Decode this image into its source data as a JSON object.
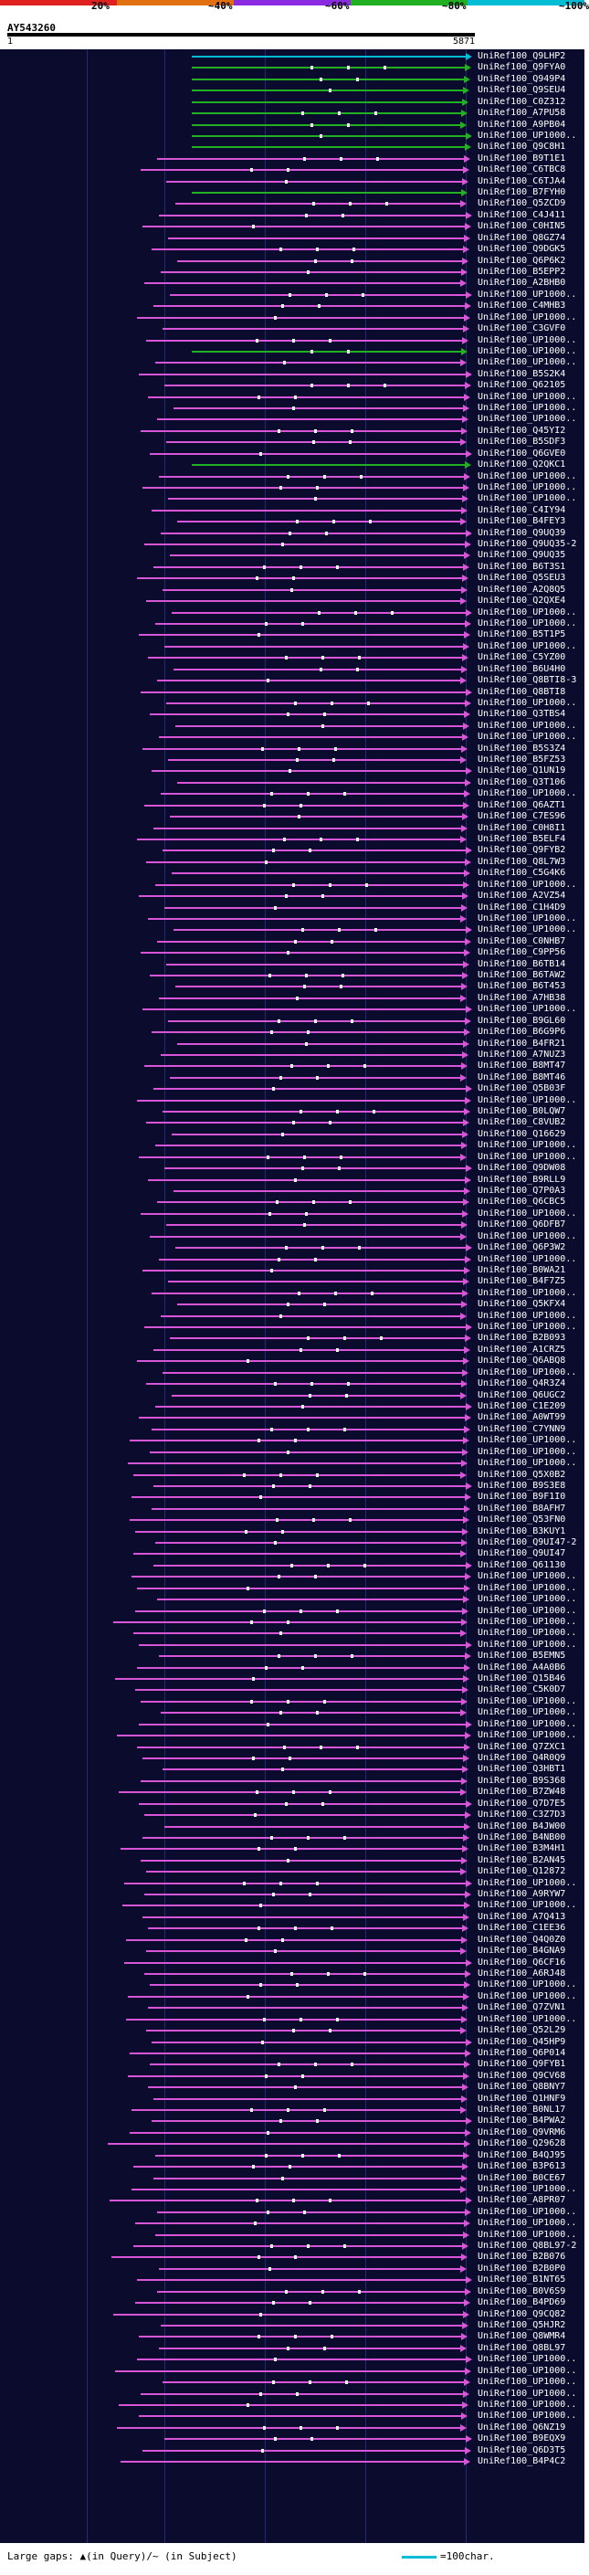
{
  "scale": {
    "labels": [
      "20%",
      "~40%",
      "~60%",
      "~80%",
      "~100%"
    ],
    "colors": [
      "#e02020",
      "#e07010",
      "#8a2be2",
      "#22b022",
      "#00bcd4"
    ]
  },
  "query": {
    "id": "AY543260",
    "start": "1",
    "end": "5871"
  },
  "colors": {
    "panel": "#0b0b2e",
    "pink": "#d855d8",
    "green": "#22b022",
    "cyan": "#00bcd4"
  },
  "hits": [
    {
      "label": "UniRef100_Q9LHP2",
      "color": "cyan"
    },
    {
      "label": "UniRef100_Q9FYA0",
      "color": "green"
    },
    {
      "label": "UniRef100_Q949P4",
      "color": "green"
    },
    {
      "label": "UniRef100_Q9SEU4",
      "color": "green"
    },
    {
      "label": "UniRef100_C0Z312",
      "color": "green"
    },
    {
      "label": "UniRef100_A7PU58",
      "color": "green"
    },
    {
      "label": "UniRef100_A9PB04",
      "color": "green"
    },
    {
      "label": "UniRef100_UP1000..",
      "color": "green"
    },
    {
      "label": "UniRef100_Q9C8H1",
      "color": "green"
    },
    {
      "label": "UniRef100_B9T1E1",
      "color": "pink"
    },
    {
      "label": "UniRef100_C6TBC8",
      "color": "pink"
    },
    {
      "label": "UniRef100_C6TJA4",
      "color": "pink"
    },
    {
      "label": "UniRef100_B7FYH0",
      "color": "green"
    },
    {
      "label": "UniRef100_Q5ZCD9",
      "color": "pink"
    },
    {
      "label": "UniRef100_C4J411",
      "color": "pink"
    },
    {
      "label": "UniRef100_C0HIN5",
      "color": "pink"
    },
    {
      "label": "UniRef100_Q8GZ74",
      "color": "pink"
    },
    {
      "label": "UniRef100_Q9DGK5",
      "color": "pink"
    },
    {
      "label": "UniRef100_Q6P6K2",
      "color": "pink"
    },
    {
      "label": "UniRef100_B5EPP2",
      "color": "pink"
    },
    {
      "label": "UniRef100_A2BHB0",
      "color": "pink"
    },
    {
      "label": "UniRef100_UP1000..",
      "color": "pink"
    },
    {
      "label": "UniRef100_C4MHB3",
      "color": "pink"
    },
    {
      "label": "UniRef100_UP1000..",
      "color": "pink"
    },
    {
      "label": "UniRef100_C3GVF0",
      "color": "pink"
    },
    {
      "label": "UniRef100_UP1000..",
      "color": "pink"
    },
    {
      "label": "UniRef100_UP1000..",
      "color": "green"
    },
    {
      "label": "UniRef100_UP1000..",
      "color": "pink"
    },
    {
      "label": "UniRef100_B5S2K4",
      "color": "pink"
    },
    {
      "label": "UniRef100_Q62105",
      "color": "pink"
    },
    {
      "label": "UniRef100_UP1000..",
      "color": "pink"
    },
    {
      "label": "UniRef100_UP1000..",
      "color": "pink"
    },
    {
      "label": "UniRef100_UP1000..",
      "color": "pink"
    },
    {
      "label": "UniRef100_Q45YI2",
      "color": "pink"
    },
    {
      "label": "UniRef100_B5SDF3",
      "color": "pink"
    },
    {
      "label": "UniRef100_Q6GVE0",
      "color": "pink"
    },
    {
      "label": "UniRef100_Q2QKC1",
      "color": "green"
    },
    {
      "label": "UniRef100_UP1000..",
      "color": "pink"
    },
    {
      "label": "UniRef100_UP1000..",
      "color": "pink"
    },
    {
      "label": "UniRef100_UP1000..",
      "color": "pink"
    },
    {
      "label": "UniRef100_C4IY94",
      "color": "pink"
    },
    {
      "label": "UniRef100_B4FEY3",
      "color": "pink"
    },
    {
      "label": "UniRef100_Q9UQ39",
      "color": "pink"
    },
    {
      "label": "UniRef100_Q9UQ35-2",
      "color": "pink"
    },
    {
      "label": "UniRef100_Q9UQ35",
      "color": "pink"
    },
    {
      "label": "UniRef100_B6T3S1",
      "color": "pink"
    },
    {
      "label": "UniRef100_Q5SEU3",
      "color": "pink"
    },
    {
      "label": "UniRef100_A2Q8Q5",
      "color": "pink"
    },
    {
      "label": "UniRef100_Q2QXE4",
      "color": "pink"
    },
    {
      "label": "UniRef100_UP1000..",
      "color": "pink"
    },
    {
      "label": "UniRef100_UP1000..",
      "color": "pink"
    },
    {
      "label": "UniRef100_B5T1P5",
      "color": "pink"
    },
    {
      "label": "UniRef100_UP1000..",
      "color": "pink"
    },
    {
      "label": "UniRef100_C5YZ00",
      "color": "pink"
    },
    {
      "label": "UniRef100_B6U4H0",
      "color": "pink"
    },
    {
      "label": "UniRef100_Q8BTI8-3",
      "color": "pink"
    },
    {
      "label": "UniRef100_Q8BTI8",
      "color": "pink"
    },
    {
      "label": "UniRef100_UP1000..",
      "color": "pink"
    },
    {
      "label": "UniRef100_Q3TBS4",
      "color": "pink"
    },
    {
      "label": "UniRef100_UP1000..",
      "color": "pink"
    },
    {
      "label": "UniRef100_UP1000..",
      "color": "pink"
    },
    {
      "label": "UniRef100_B5S3Z4",
      "color": "pink"
    },
    {
      "label": "UniRef100_B5FZ53",
      "color": "pink"
    },
    {
      "label": "UniRef100_Q1UN19",
      "color": "pink"
    },
    {
      "label": "UniRef100_Q3T106",
      "color": "pink"
    },
    {
      "label": "UniRef100_UP1000..",
      "color": "pink"
    },
    {
      "label": "UniRef100_Q6AZT1",
      "color": "pink"
    },
    {
      "label": "UniRef100_C7ES96",
      "color": "pink"
    },
    {
      "label": "UniRef100_C0H8I1",
      "color": "pink"
    },
    {
      "label": "UniRef100_B5ELF4",
      "color": "pink"
    },
    {
      "label": "UniRef100_Q9FYB2",
      "color": "pink"
    },
    {
      "label": "UniRef100_Q8L7W3",
      "color": "pink"
    },
    {
      "label": "UniRef100_C5G4K6",
      "color": "pink"
    },
    {
      "label": "UniRef100_UP1000..",
      "color": "pink"
    },
    {
      "label": "UniRef100_A2VZ54",
      "color": "pink"
    },
    {
      "label": "UniRef100_C1H4D9",
      "color": "pink"
    },
    {
      "label": "UniRef100_UP1000..",
      "color": "pink"
    },
    {
      "label": "UniRef100_UP1000..",
      "color": "pink"
    },
    {
      "label": "UniRef100_C0NHB7",
      "color": "pink"
    },
    {
      "label": "UniRef100_C9PP56",
      "color": "pink"
    },
    {
      "label": "UniRef100_B6TB14",
      "color": "pink"
    },
    {
      "label": "UniRef100_B6TAW2",
      "color": "pink"
    },
    {
      "label": "UniRef100_B6T453",
      "color": "pink"
    },
    {
      "label": "UniRef100_A7HB38",
      "color": "pink"
    },
    {
      "label": "UniRef100_UP1000..",
      "color": "pink"
    },
    {
      "label": "UniRef100_B9GL60",
      "color": "pink"
    },
    {
      "label": "UniRef100_B6G9P6",
      "color": "pink"
    },
    {
      "label": "UniRef100_B4FR21",
      "color": "pink"
    },
    {
      "label": "UniRef100_A7NUZ3",
      "color": "pink"
    },
    {
      "label": "UniRef100_B8MT47",
      "color": "pink"
    },
    {
      "label": "UniRef100_B8MT46",
      "color": "pink"
    },
    {
      "label": "UniRef100_Q5B03F",
      "color": "pink"
    },
    {
      "label": "UniRef100_UP1000..",
      "color": "pink"
    },
    {
      "label": "UniRef100_B0LQW7",
      "color": "pink"
    },
    {
      "label": "UniRef100_C8VUB2",
      "color": "pink"
    },
    {
      "label": "UniRef100_Q16629",
      "color": "pink"
    },
    {
      "label": "UniRef100_UP1000..",
      "color": "pink"
    },
    {
      "label": "UniRef100_UP1000..",
      "color": "pink"
    },
    {
      "label": "UniRef100_Q9DW08",
      "color": "pink"
    },
    {
      "label": "UniRef100_B9RLL9",
      "color": "pink"
    },
    {
      "label": "UniRef100_Q7P0A3",
      "color": "pink"
    },
    {
      "label": "UniRef100_Q6CBC5",
      "color": "pink"
    },
    {
      "label": "UniRef100_UP1000..",
      "color": "pink"
    },
    {
      "label": "UniRef100_Q6DFB7",
      "color": "pink"
    },
    {
      "label": "UniRef100_UP1000..",
      "color": "pink"
    },
    {
      "label": "UniRef100_Q6P3W2",
      "color": "pink"
    },
    {
      "label": "UniRef100_UP1000..",
      "color": "pink"
    },
    {
      "label": "UniRef100_B0WA21",
      "color": "pink"
    },
    {
      "label": "UniRef100_B4F7Z5",
      "color": "pink"
    },
    {
      "label": "UniRef100_UP1000..",
      "color": "pink"
    },
    {
      "label": "UniRef100_Q5KFX4",
      "color": "pink"
    },
    {
      "label": "UniRef100_UP1000..",
      "color": "pink"
    },
    {
      "label": "UniRef100_UP1000..",
      "color": "pink"
    },
    {
      "label": "UniRef100_B2B093",
      "color": "pink"
    },
    {
      "label": "UniRef100_A1CRZ5",
      "color": "pink"
    },
    {
      "label": "UniRef100_Q6ABQ8",
      "color": "pink"
    },
    {
      "label": "UniRef100_UP1000..",
      "color": "pink"
    },
    {
      "label": "UniRef100_Q4R3Z4",
      "color": "pink"
    },
    {
      "label": "UniRef100_Q6UGC2",
      "color": "pink"
    },
    {
      "label": "UniRef100_C1E209",
      "color": "pink"
    },
    {
      "label": "UniRef100_A0WT99",
      "color": "pink"
    },
    {
      "label": "UniRef100_C7YNN9",
      "color": "pink"
    },
    {
      "label": "UniRef100_UP1000..",
      "color": "pink"
    },
    {
      "label": "UniRef100_UP1000..",
      "color": "pink"
    },
    {
      "label": "UniRef100_UP1000..",
      "color": "pink"
    },
    {
      "label": "UniRef100_Q5X0B2",
      "color": "pink"
    },
    {
      "label": "UniRef100_B9S3E8",
      "color": "pink"
    },
    {
      "label": "UniRef100_B9F1I0",
      "color": "pink"
    },
    {
      "label": "UniRef100_B8AFH7",
      "color": "pink"
    },
    {
      "label": "UniRef100_Q53FN0",
      "color": "pink"
    },
    {
      "label": "UniRef100_B3KUY1",
      "color": "pink"
    },
    {
      "label": "UniRef100_Q9UI47-2",
      "color": "pink"
    },
    {
      "label": "UniRef100_Q9UI47",
      "color": "pink"
    },
    {
      "label": "UniRef100_Q61130",
      "color": "pink"
    },
    {
      "label": "UniRef100_UP1000..",
      "color": "pink"
    },
    {
      "label": "UniRef100_UP1000..",
      "color": "pink"
    },
    {
      "label": "UniRef100_UP1000..",
      "color": "pink"
    },
    {
      "label": "UniRef100_UP1000..",
      "color": "pink"
    },
    {
      "label": "UniRef100_UP1000..",
      "color": "pink"
    },
    {
      "label": "UniRef100_UP1000..",
      "color": "pink"
    },
    {
      "label": "UniRef100_UP1000..",
      "color": "pink"
    },
    {
      "label": "UniRef100_B5EMN5",
      "color": "pink"
    },
    {
      "label": "UniRef100_A4A0B6",
      "color": "pink"
    },
    {
      "label": "UniRef100_Q15B46",
      "color": "pink"
    },
    {
      "label": "UniRef100_C5K0D7",
      "color": "pink"
    },
    {
      "label": "UniRef100_UP1000..",
      "color": "pink"
    },
    {
      "label": "UniRef100_UP1000..",
      "color": "pink"
    },
    {
      "label": "UniRef100_UP1000..",
      "color": "pink"
    },
    {
      "label": "UniRef100_UP1000..",
      "color": "pink"
    },
    {
      "label": "UniRef100_Q7ZXC1",
      "color": "pink"
    },
    {
      "label": "UniRef100_Q4R0Q9",
      "color": "pink"
    },
    {
      "label": "UniRef100_Q3HBT1",
      "color": "pink"
    },
    {
      "label": "UniRef100_B9S368",
      "color": "pink"
    },
    {
      "label": "UniRef100_B7ZW48",
      "color": "pink"
    },
    {
      "label": "UniRef100_Q7D7E5",
      "color": "pink"
    },
    {
      "label": "UniRef100_C3Z7D3",
      "color": "pink"
    },
    {
      "label": "UniRef100_B4JW00",
      "color": "pink"
    },
    {
      "label": "UniRef100_B4NB00",
      "color": "pink"
    },
    {
      "label": "UniRef100_B3M4H1",
      "color": "pink"
    },
    {
      "label": "UniRef100_B2AN45",
      "color": "pink"
    },
    {
      "label": "UniRef100_Q12872",
      "color": "pink"
    },
    {
      "label": "UniRef100_UP1000..",
      "color": "pink"
    },
    {
      "label": "UniRef100_A9RYW7",
      "color": "pink"
    },
    {
      "label": "UniRef100_UP1000..",
      "color": "pink"
    },
    {
      "label": "UniRef100_A7Q413",
      "color": "pink"
    },
    {
      "label": "UniRef100_C1EE36",
      "color": "pink"
    },
    {
      "label": "UniRef100_Q4Q0Z0",
      "color": "pink"
    },
    {
      "label": "UniRef100_B4GNA9",
      "color": "pink"
    },
    {
      "label": "UniRef100_Q6CF16",
      "color": "pink"
    },
    {
      "label": "UniRef100_A6RJ48",
      "color": "pink"
    },
    {
      "label": "UniRef100_UP1000..",
      "color": "pink"
    },
    {
      "label": "UniRef100_UP1000..",
      "color": "pink"
    },
    {
      "label": "UniRef100_Q7ZVN1",
      "color": "pink"
    },
    {
      "label": "UniRef100_UP1000..",
      "color": "pink"
    },
    {
      "label": "UniRef100_Q52L29",
      "color": "pink"
    },
    {
      "label": "UniRef100_Q45HP9",
      "color": "pink"
    },
    {
      "label": "UniRef100_Q6P014",
      "color": "pink"
    },
    {
      "label": "UniRef100_Q9FYB1",
      "color": "pink"
    },
    {
      "label": "UniRef100_Q9CV68",
      "color": "pink"
    },
    {
      "label": "UniRef100_Q8BNY7",
      "color": "pink"
    },
    {
      "label": "UniRef100_Q1HNF9",
      "color": "pink"
    },
    {
      "label": "UniRef100_B0NL17",
      "color": "pink"
    },
    {
      "label": "UniRef100_B4PWA2",
      "color": "pink"
    },
    {
      "label": "UniRef100_Q9VRM6",
      "color": "pink"
    },
    {
      "label": "UniRef100_Q29628",
      "color": "pink"
    },
    {
      "label": "UniRef100_B4QJ95",
      "color": "pink"
    },
    {
      "label": "UniRef100_B3P613",
      "color": "pink"
    },
    {
      "label": "UniRef100_B0CE67",
      "color": "pink"
    },
    {
      "label": "UniRef100_UP1000..",
      "color": "pink"
    },
    {
      "label": "UniRef100_A8PR07",
      "color": "pink"
    },
    {
      "label": "UniRef100_UP1000..",
      "color": "pink"
    },
    {
      "label": "UniRef100_UP1000..",
      "color": "pink"
    },
    {
      "label": "UniRef100_UP1000..",
      "color": "pink"
    },
    {
      "label": "UniRef100_Q8BL97-2",
      "color": "pink"
    },
    {
      "label": "UniRef100_B2B076",
      "color": "pink"
    },
    {
      "label": "UniRef100_B2B0P0",
      "color": "pink"
    },
    {
      "label": "UniRef100_B1NT65",
      "color": "pink"
    },
    {
      "label": "UniRef100_B0V6S9",
      "color": "pink"
    },
    {
      "label": "UniRef100_B4PD69",
      "color": "pink"
    },
    {
      "label": "UniRef100_Q9CQ82",
      "color": "pink"
    },
    {
      "label": "UniRef100_Q5HJR2",
      "color": "pink"
    },
    {
      "label": "UniRef100_Q8WMR4",
      "color": "pink"
    },
    {
      "label": "UniRef100_Q8BL97",
      "color": "pink"
    },
    {
      "label": "UniRef100_UP1000..",
      "color": "pink"
    },
    {
      "label": "UniRef100_UP1000..",
      "color": "pink"
    },
    {
      "label": "UniRef100_UP1000..",
      "color": "pink"
    },
    {
      "label": "UniRef100_UP1000..",
      "color": "pink"
    },
    {
      "label": "UniRef100_UP1000..",
      "color": "pink"
    },
    {
      "label": "UniRef100_UP1000..",
      "color": "pink"
    },
    {
      "label": "UniRef100_Q6NZ19",
      "color": "pink"
    },
    {
      "label": "UniRef100_B9EQX9",
      "color": "pink"
    },
    {
      "label": "UniRef100_Q6D3T5",
      "color": "pink"
    },
    {
      "label": "UniRef100_B4P4C2",
      "color": "pink"
    }
  ],
  "legend": {
    "large_gaps": "Large gaps: ▲(in Query)/~ (in Subject)",
    "scale_text": "=100char."
  }
}
